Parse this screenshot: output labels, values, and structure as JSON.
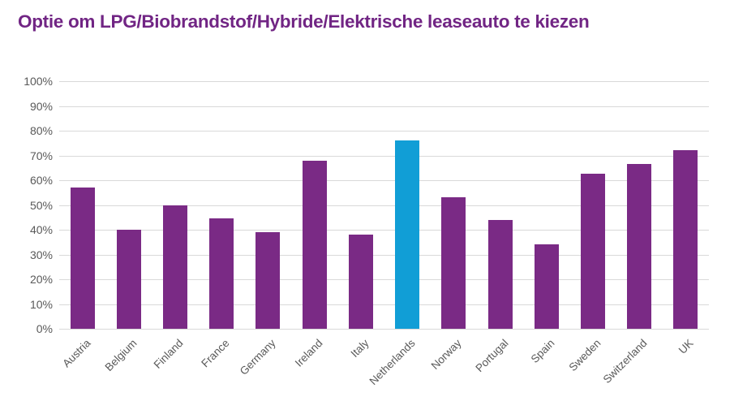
{
  "title": "Optie om LPG/Biobrandstof/Hybride/Elektrische leaseauto te kiezen",
  "colors": {
    "title": "#712584",
    "bar": "#7A2A85",
    "highlight_bar": "#119ED6",
    "gridline": "#D9D9D9",
    "axis_label": "#595959"
  },
  "chart_data": {
    "type": "bar",
    "title": "Optie om LPG/Biobrandstof/Hybride/Elektrische leaseauto te kiezen",
    "categories": [
      "Austria",
      "Belgium",
      "Finland",
      "France",
      "Germany",
      "Ireland",
      "Italy",
      "Netherlands",
      "Norway",
      "Portugal",
      "Spain",
      "Sweden",
      "Switzerland",
      "UK"
    ],
    "values": [
      57,
      40,
      50,
      44.5,
      39,
      68,
      38,
      76,
      53,
      44,
      34,
      62.5,
      66.5,
      72
    ],
    "highlight_category": "Netherlands",
    "xlabel": "",
    "ylabel": "",
    "ylim": [
      0,
      100
    ],
    "ytick_step": 10,
    "ytick_labels": [
      "0%",
      "10%",
      "20%",
      "30%",
      "40%",
      "50%",
      "60%",
      "70%",
      "80%",
      "90%",
      "100%"
    ],
    "grid": true,
    "legend": false
  }
}
